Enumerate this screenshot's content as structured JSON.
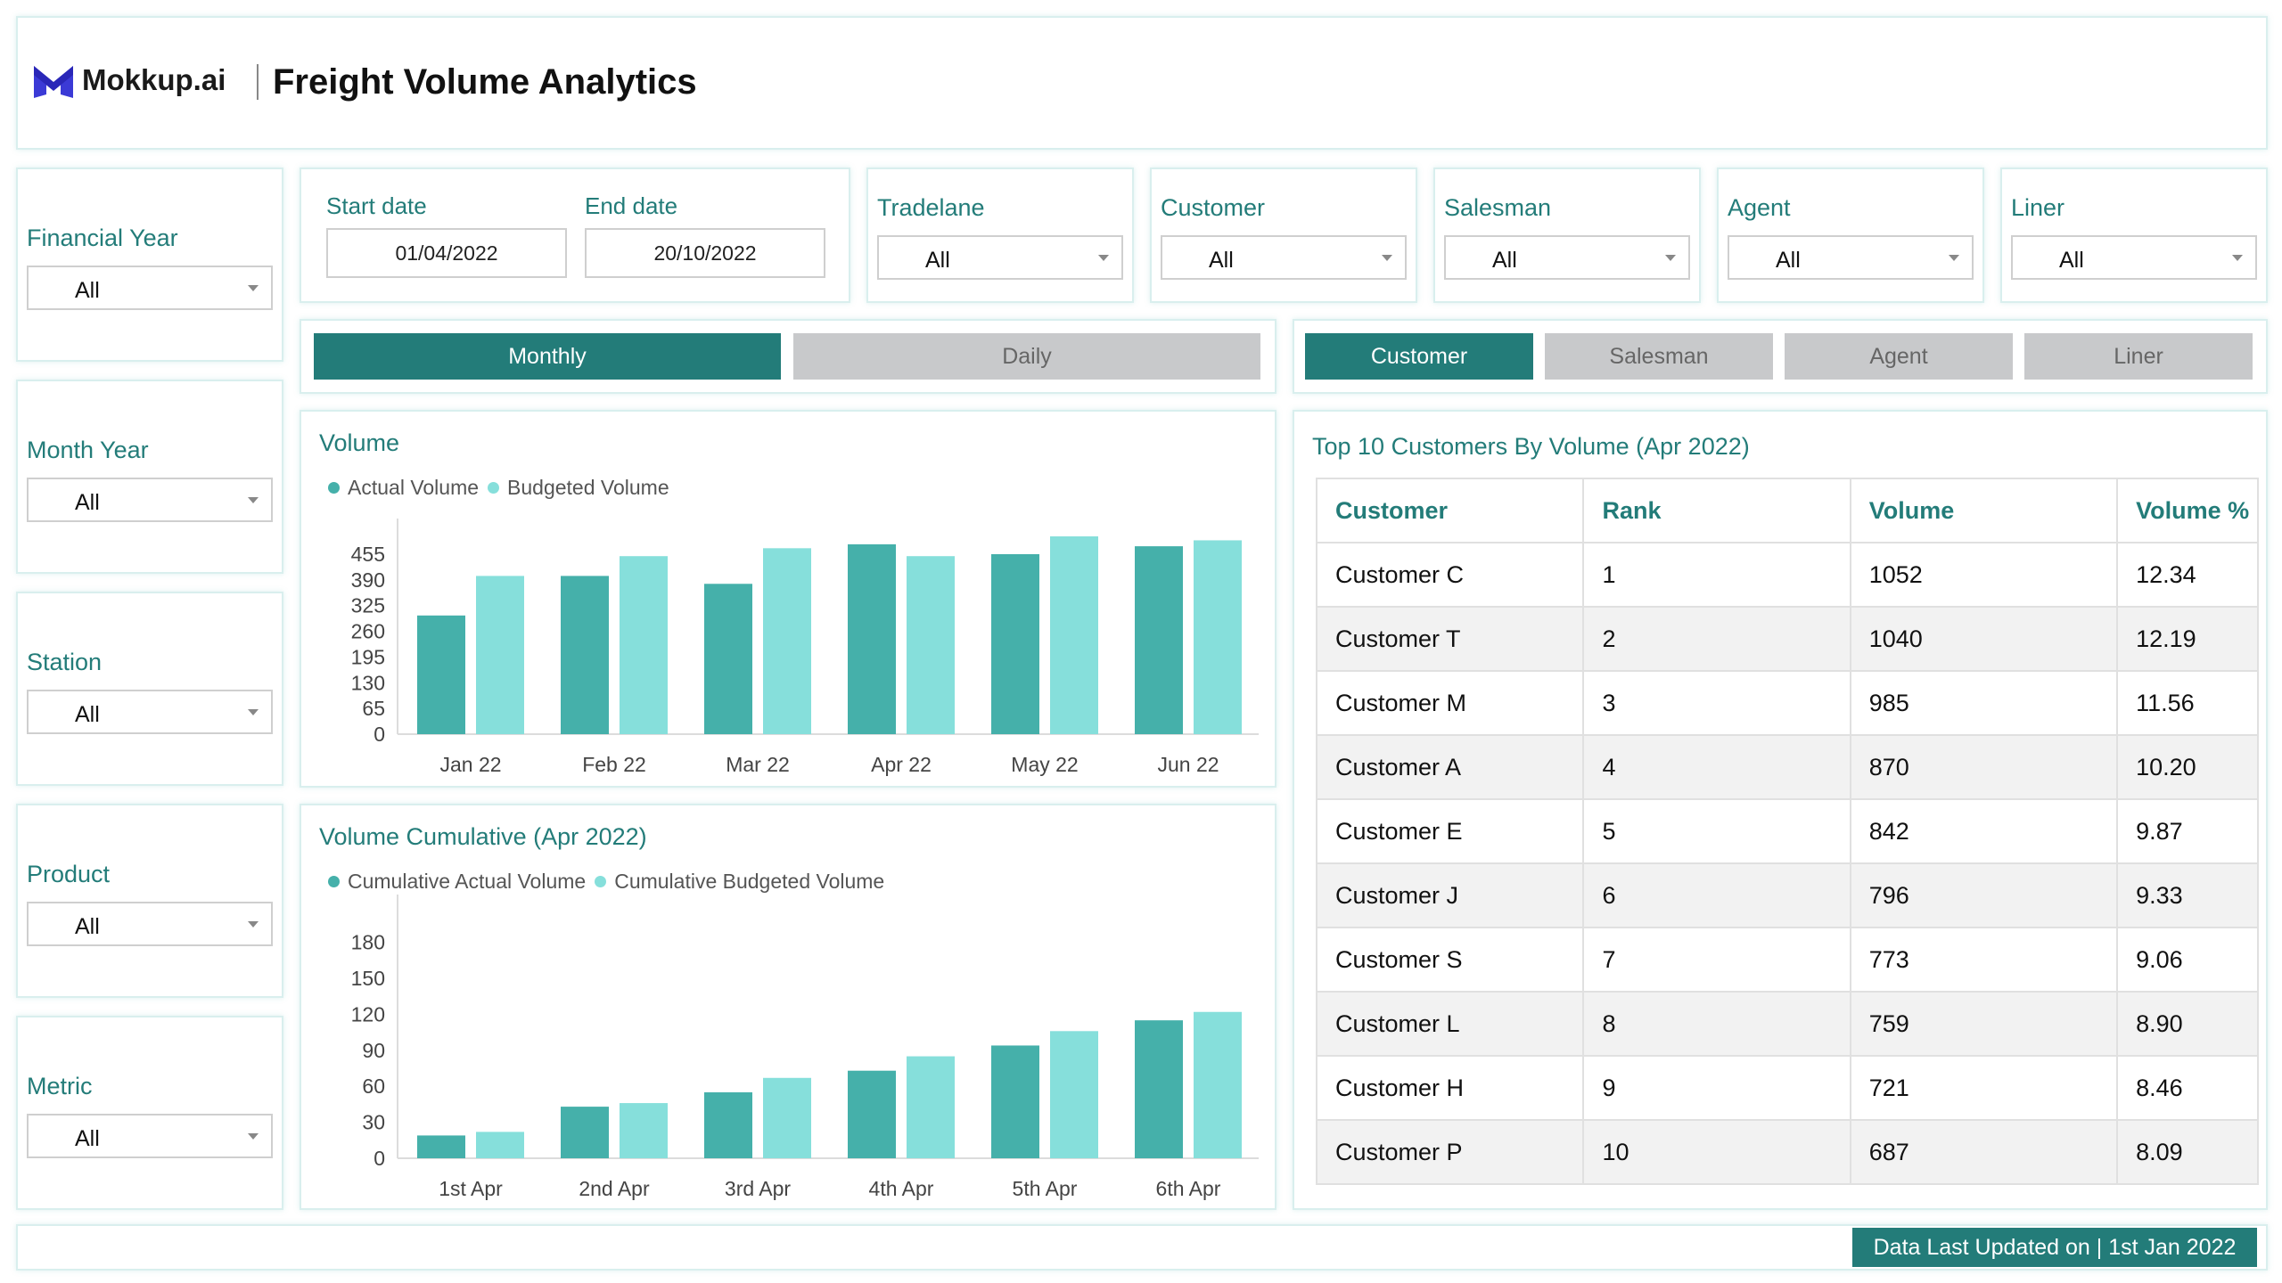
{
  "header": {
    "logo_text": "Mokkup.ai",
    "title": "Freight Volume Analytics"
  },
  "left_filters": [
    {
      "label": "Financial Year",
      "value": "All"
    },
    {
      "label": "Month Year",
      "value": "All"
    },
    {
      "label": "Station",
      "value": "All"
    },
    {
      "label": "Product",
      "value": "All"
    },
    {
      "label": "Metric",
      "value": "All"
    }
  ],
  "dates": {
    "start_label": "Start date",
    "start_value": "01/04/2022",
    "end_label": "End date",
    "end_value": "20/10/2022"
  },
  "top_filters": [
    {
      "label": "Tradelane",
      "value": "All"
    },
    {
      "label": "Customer",
      "value": "All"
    },
    {
      "label": "Salesman",
      "value": "All"
    },
    {
      "label": "Agent",
      "value": "All"
    },
    {
      "label": "Liner",
      "value": "All"
    }
  ],
  "period_tabs": [
    {
      "label": "Monthly",
      "active": true
    },
    {
      "label": "Daily",
      "active": false
    }
  ],
  "entity_tabs": [
    {
      "label": "Customer",
      "active": true
    },
    {
      "label": "Salesman",
      "active": false
    },
    {
      "label": "Agent",
      "active": false
    },
    {
      "label": "Liner",
      "active": false
    }
  ],
  "colors": {
    "accent": "#237c79",
    "actual": "#45b0aa",
    "budget": "#86dfdb"
  },
  "chart_data": [
    {
      "type": "bar",
      "title": "Volume",
      "categories": [
        "Jan 22",
        "Feb 22",
        "Mar 22",
        "Apr 22",
        "May 22",
        "Jun 22"
      ],
      "series": [
        {
          "name": "Actual Volume",
          "values": [
            300,
            400,
            380,
            480,
            455,
            475
          ]
        },
        {
          "name": "Budgeted Volume",
          "values": [
            400,
            450,
            470,
            450,
            500,
            490
          ]
        }
      ],
      "yticks": [
        0,
        65,
        130,
        195,
        260,
        325,
        390,
        455
      ],
      "ylim": [
        0,
        500
      ]
    },
    {
      "type": "bar",
      "title": "Volume Cumulative (Apr 2022)",
      "categories": [
        "1st Apr",
        "2nd Apr",
        "3rd Apr",
        "4th Apr",
        "5th Apr",
        "6th Apr"
      ],
      "series": [
        {
          "name": "Cumulative Actual Volume",
          "values": [
            19,
            43,
            55,
            73,
            94,
            115
          ]
        },
        {
          "name": "Cumulative Budgeted Volume",
          "values": [
            22,
            46,
            67,
            85,
            106,
            122
          ]
        }
      ],
      "yticks": [
        0,
        30,
        60,
        90,
        120,
        150,
        180
      ],
      "ylim": [
        0,
        205
      ]
    }
  ],
  "table": {
    "title": "Top 10 Customers By Volume (Apr 2022)",
    "columns": [
      "Customer",
      "Rank",
      "Volume",
      "Volume %"
    ],
    "rows": [
      [
        "Customer C",
        "1",
        "1052",
        "12.34"
      ],
      [
        "Customer T",
        "2",
        "1040",
        "12.19"
      ],
      [
        "Customer M",
        "3",
        "985",
        "11.56"
      ],
      [
        "Customer A",
        "4",
        "870",
        "10.20"
      ],
      [
        "Customer E",
        "5",
        "842",
        "9.87"
      ],
      [
        "Customer J",
        "6",
        "796",
        "9.33"
      ],
      [
        "Customer S",
        "7",
        "773",
        "9.06"
      ],
      [
        "Customer L",
        "8",
        "759",
        "8.90"
      ],
      [
        "Customer H",
        "9",
        "721",
        "8.46"
      ],
      [
        "Customer P",
        "10",
        "687",
        "8.09"
      ]
    ]
  },
  "footer": {
    "updated": "Data Last Updated on | 1st Jan 2022"
  }
}
